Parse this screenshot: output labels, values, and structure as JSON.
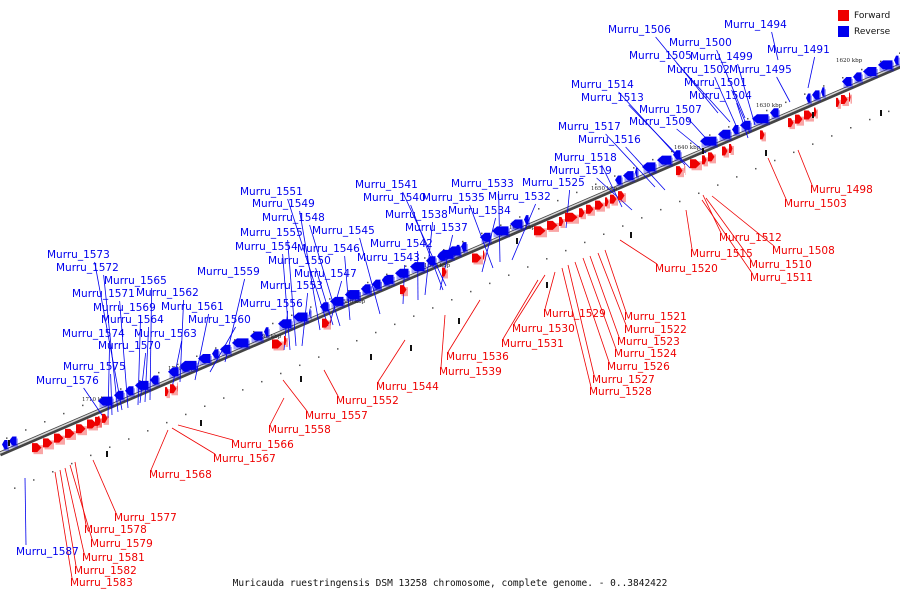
{
  "legend": {
    "forward_label": "Forward",
    "reverse_label": "Reverse",
    "forward_color": "#ee0000",
    "reverse_color": "#0000ee"
  },
  "caption": "Muricauda ruestringensis DSM 13258 chromosome, complete genome. - 0..3842422",
  "ticks": [
    "1620 kbp",
    "1630 kbp",
    "1640 kbp",
    "1650 kbp",
    "1660 kbp",
    "1670 kbp",
    "1680 kbp",
    "1690 kbp",
    "1700 kbp",
    "1710 kbp"
  ],
  "reverse_genes": [
    "Murru_1494",
    "Murru_1491",
    "Murru_1506",
    "Murru_1500",
    "Murru_1505",
    "Murru_1499",
    "Murru_1502",
    "Murru_1495",
    "Murru_1501",
    "Murru_1514",
    "Murru_1504",
    "Murru_1513",
    "Murru_1507",
    "Murru_1509",
    "Murru_1517",
    "Murru_1516",
    "Murru_1518",
    "Murru_1519",
    "Murru_1525",
    "Murru_1541",
    "Murru_1533",
    "Murru_1540",
    "Murru_1535",
    "Murru_1532",
    "Murru_1551",
    "Murru_1538",
    "Murru_1534",
    "Murru_1549",
    "Murru_1537",
    "Murru_1548",
    "Murru_1545",
    "Murru_1555",
    "Murru_1542",
    "Murru_1554",
    "Murru_1546",
    "Murru_1550",
    "Murru_1543",
    "Murru_1573",
    "Murru_1559",
    "Murru_1547",
    "Murru_1572",
    "Murru_1565",
    "Murru_1553",
    "Murru_1571",
    "Murru_1562",
    "Murru_1556",
    "Murru_1569",
    "Murru_1561",
    "Murru_1564",
    "Murru_1560",
    "Murru_1574",
    "Murru_1563",
    "Murru_1570",
    "Murru_1575",
    "Murru_1576",
    "Murru_1587"
  ],
  "forward_genes": [
    "Murru_1498",
    "Murru_1503",
    "Murru_1512",
    "Murru_1508",
    "Murru_1515",
    "Murru_1510",
    "Murru_1520",
    "Murru_1511",
    "Murru_1521",
    "Murru_1529",
    "Murru_1522",
    "Murru_1530",
    "Murru_1523",
    "Murru_1531",
    "Murru_1524",
    "Murru_1536",
    "Murru_1526",
    "Murru_1539",
    "Murru_1527",
    "Murru_1528",
    "Murru_1544",
    "Murru_1552",
    "Murru_1557",
    "Murru_1558",
    "Murru_1566",
    "Murru_1567",
    "Murru_1568",
    "Murru_1577",
    "Murru_1578",
    "Murru_1579",
    "Murru_1581",
    "Murru_1582",
    "Murru_1583"
  ]
}
